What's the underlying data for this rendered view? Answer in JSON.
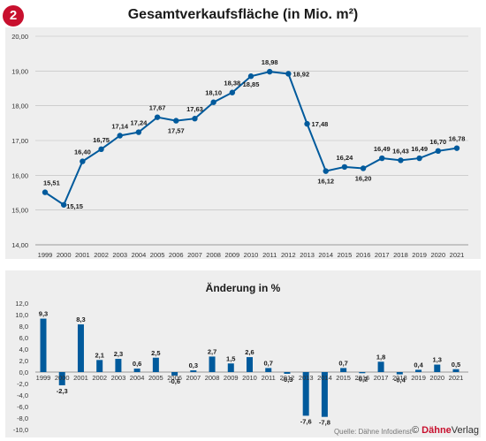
{
  "badge": "2",
  "colors": {
    "series": "#005a9c",
    "accent": "#c8102e",
    "grid": "#bbbbbb"
  },
  "chart_data": [
    {
      "type": "line",
      "title": "Gesamtverkaufsfläche (in Mio. m²)",
      "x": [
        "1999",
        "2000",
        "2001",
        "2002",
        "2003",
        "2004",
        "2005",
        "2006",
        "2007",
        "2008",
        "2009",
        "2010",
        "2011",
        "2012",
        "2013",
        "2014",
        "2015",
        "2016",
        "2017",
        "2018",
        "2019",
        "2020",
        "2021"
      ],
      "values": [
        15.51,
        15.15,
        16.4,
        16.75,
        17.14,
        17.24,
        17.67,
        17.57,
        17.63,
        18.1,
        18.38,
        18.85,
        18.98,
        18.92,
        17.48,
        16.12,
        16.24,
        16.2,
        16.49,
        16.43,
        16.49,
        16.7,
        16.78
      ],
      "value_labels": [
        "15,51",
        "15,15",
        "16,40",
        "16,75",
        "17,14",
        "17,24",
        "17,67",
        "17,57",
        "17,63",
        "18,10",
        "18,38",
        "18,85",
        "18,98",
        "18,92",
        "17,48",
        "16,12",
        "16,24",
        "16,20",
        "16,49",
        "16,43",
        "16,49",
        "16,70",
        "16,78"
      ],
      "ylim": [
        14,
        20
      ],
      "yticks": [
        14,
        15,
        16,
        17,
        18,
        19,
        20
      ],
      "ytick_labels": [
        "14,00",
        "15,00",
        "16,00",
        "17,00",
        "18,00",
        "19,00",
        "20,00"
      ],
      "grid": true
    },
    {
      "type": "bar",
      "title": "Änderung in %",
      "categories": [
        "1999",
        "2000",
        "2001",
        "2002",
        "2003",
        "2004",
        "2005",
        "2006",
        "2007",
        "2008",
        "2009",
        "2010",
        "2011",
        "2012",
        "2013",
        "2014",
        "2015",
        "2016",
        "2017",
        "2018",
        "2019",
        "2020",
        "2021"
      ],
      "values": [
        9.3,
        -2.3,
        8.3,
        2.1,
        2.3,
        0.6,
        2.5,
        -0.6,
        0.3,
        2.7,
        1.5,
        2.6,
        0.7,
        -0.3,
        -7.6,
        -7.8,
        0.7,
        -0.2,
        1.8,
        -0.4,
        0.4,
        1.3,
        0.5
      ],
      "value_labels": [
        "9,3",
        "-2,3",
        "8,3",
        "2,1",
        "2,3",
        "0,6",
        "2,5",
        "-0,6",
        "0,3",
        "2,7",
        "1,5",
        "2,6",
        "0,7",
        "-0,3",
        "-7,6",
        "-7,8",
        "0,7",
        "-0,2",
        "1,8",
        "-0,4",
        "0,4",
        "1,3",
        "0,5"
      ],
      "ylim": [
        -10,
        12
      ],
      "yticks": [
        -10,
        -8,
        -6,
        -4,
        -2,
        0,
        2,
        4,
        6,
        8,
        10,
        12
      ],
      "ytick_labels": [
        "-10,0",
        "-8,0",
        "-6,0",
        "-4,0",
        "-2,0",
        "0,0",
        "2,0",
        "4,0",
        "6,0",
        "8,0",
        "10,0",
        "12,0"
      ],
      "grid": false
    }
  ],
  "footer": {
    "source": "Quelle: Dähne Infodienst",
    "copyright": "©",
    "brand_strong": "Dähne",
    "brand_rest": "Verlag"
  }
}
